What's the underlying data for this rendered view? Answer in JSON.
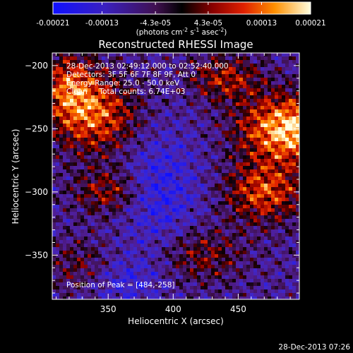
{
  "chart_data": {
    "type": "heatmap",
    "title": "Reconstructed RHESSI Image",
    "xlabel": "Heliocentric X (arcsec)",
    "ylabel": "Heliocentric Y (arcsec)",
    "xlim": [
      307,
      497
    ],
    "ylim": [
      -385,
      -190
    ],
    "x_ticks": [
      350,
      400,
      450
    ],
    "y_ticks": [
      -200,
      -250,
      -300,
      -350
    ],
    "colorbar": {
      "range": [
        -0.00021,
        0.00021
      ],
      "tick_labels": [
        "-0.00021",
        "-0.00013",
        "-4.3e-05",
        "4.3e-05",
        "0.00013",
        "0.00021"
      ],
      "tick_values": [
        -0.00021,
        -0.00013,
        -4.3e-05,
        4.3e-05,
        0.00013,
        0.00021
      ],
      "unit_prefix": "(photons cm",
      "unit_sup1": "-2",
      "unit_mid1": " s",
      "unit_sup2": "-1",
      "unit_mid2": " asec",
      "unit_sup3": "-2",
      "unit_suffix": ")"
    },
    "annotations": [
      "28-Dec-2013 02:49:12.000 to 02:52:40.000",
      "Detectors: 3F 5F 6F 7F 8F 9F, Att 0",
      "Energy Range: 25.0 - 50.0 keV",
      "Clean     Total counts: 6.74E+03"
    ],
    "peak_label": "Position of Peak = [484,-258]",
    "peak_position": [
      484,
      -258
    ],
    "colors": {
      "negative_low": "#1010ff",
      "mid": "#000000",
      "positive_mid": "#cc1000",
      "positive_high": "#ffa000",
      "positive_max": "#ffffe0"
    }
  },
  "timestamp": "28-Dec-2013 07:26"
}
